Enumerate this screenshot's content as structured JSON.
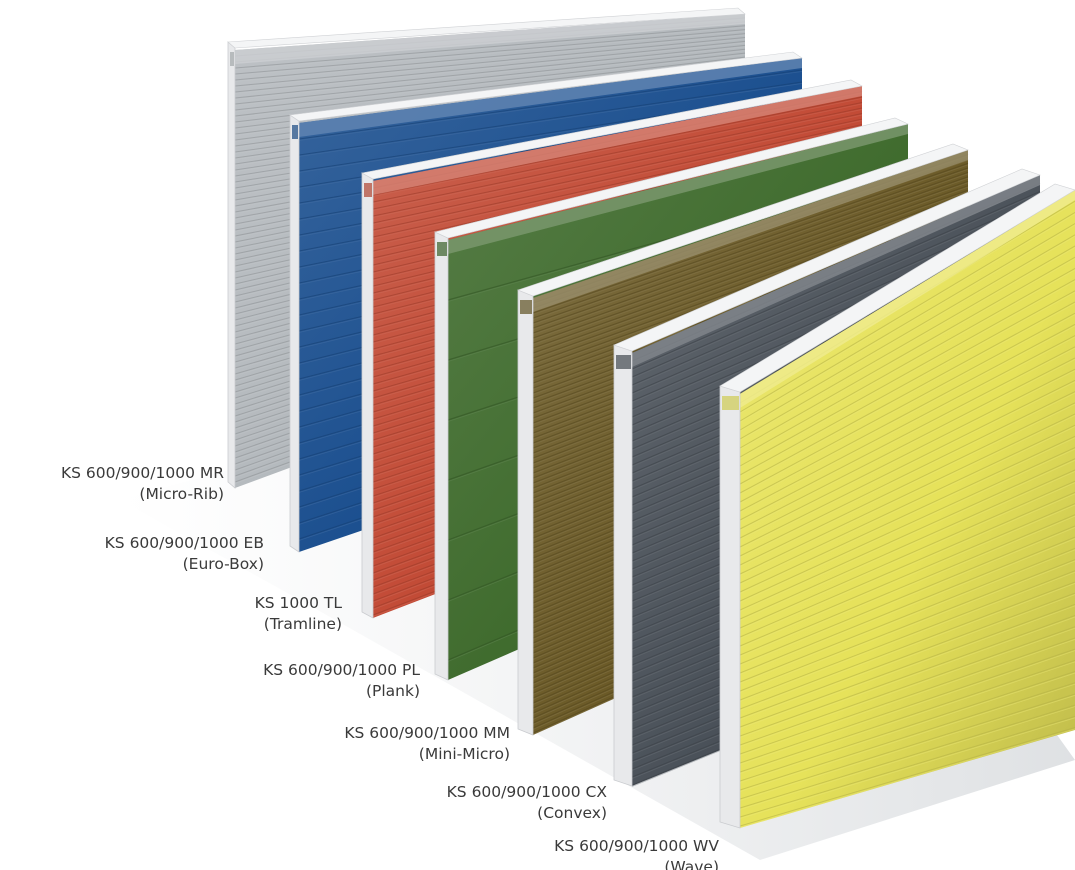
{
  "products": [
    {
      "code": "KS 600/900/1000 MR",
      "profile": "(Micro-Rib)",
      "color": "#b4b9bd",
      "rib": "micro"
    },
    {
      "code": "KS 600/900/1000 EB",
      "profile": "(Euro-Box)",
      "color": "#1b4f8f",
      "rib": "box"
    },
    {
      "code": "KS 1000 TL",
      "profile": "(Tramline)",
      "color": "#c24a35",
      "rib": "tram"
    },
    {
      "code": "KS 600/900/1000 PL",
      "profile": "(Plank)",
      "color": "#3f6b2d",
      "rib": "plank"
    },
    {
      "code": "KS 600/900/1000 MM",
      "profile": "(Mini-Micro)",
      "color": "#6b5a27",
      "rib": "mini"
    },
    {
      "code": "KS 600/900/1000 CX",
      "profile": "(Convex)",
      "color": "#4a5159",
      "rib": "convex"
    },
    {
      "code": "KS 600/900/1000 WV",
      "profile": "(Wave)",
      "color": "#e6e25a",
      "rib": "wave"
    }
  ],
  "core_color": "#e8e9eb"
}
